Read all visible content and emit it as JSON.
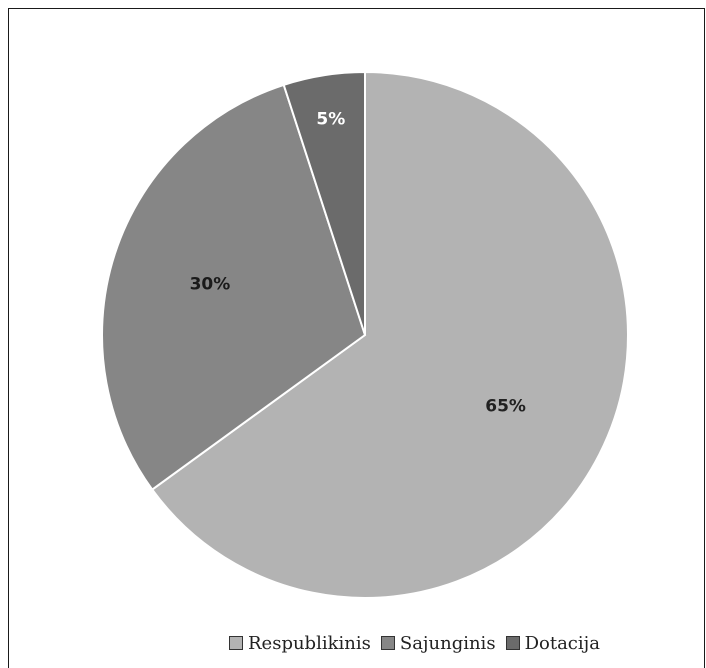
{
  "chart_data": {
    "type": "pie",
    "title": "",
    "slices": [
      {
        "name": "Respublikinis",
        "value": 65,
        "label": "65%",
        "color": "#b3b3b3",
        "label_color": "#222222"
      },
      {
        "name": "Sajunginis",
        "value": 30,
        "label": "30%",
        "color": "#868686",
        "label_color": "#1a1a1a"
      },
      {
        "name": "Dotacija",
        "value": 5,
        "label": "5%",
        "color": "#6b6b6b",
        "label_color": "#ffffff"
      }
    ],
    "start_angle_deg": 0,
    "direction": "clockwise",
    "legend_position": "bottom"
  },
  "legend": {
    "items": [
      "Respublikinis",
      "Sajunginis",
      "Dotacija"
    ]
  }
}
